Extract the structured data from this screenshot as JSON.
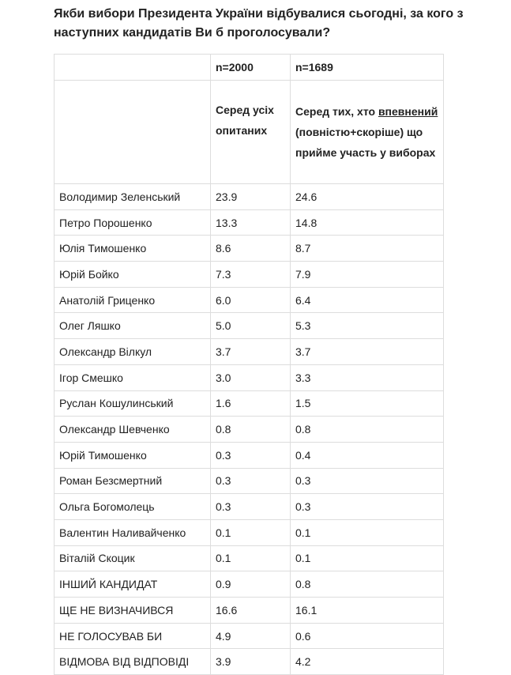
{
  "title": "Якби вибори Президента України відбувалися сьогодні, за кого з наступних кандидатів Ви б проголосували?",
  "table": {
    "header": {
      "n_all": "n=2000",
      "n_sure": "n=1689",
      "desc_all": "Серед усіх опитаних",
      "desc_sure": [
        "Серед тих, хто",
        "впевнений",
        "(повністю+скоріше) що прийме участь у виборах"
      ]
    },
    "rows": [
      [
        "Володимир Зеленський",
        "23.9",
        "24.6"
      ],
      [
        "Петро Порошенко",
        "13.3",
        "14.8"
      ],
      [
        "Юлія Тимошенко",
        "8.6",
        "8.7"
      ],
      [
        "Юрій Бойко",
        "7.3",
        "7.9"
      ],
      [
        "Анатолій Гриценко",
        "6.0",
        "6.4"
      ],
      [
        "Олег Ляшко",
        "5.0",
        "5.3"
      ],
      [
        "Олександр Вілкул",
        "3.7",
        "3.7"
      ],
      [
        "Ігор Смешко",
        "3.0",
        "3.3"
      ],
      [
        "Руслан Кошулинський",
        "1.6",
        "1.5"
      ],
      [
        "Олександр Шевченко",
        "0.8",
        "0.8"
      ],
      [
        "Юрій Тимошенко",
        "0.3",
        "0.4"
      ],
      [
        "Роман Безсмертний",
        "0.3",
        "0.3"
      ],
      [
        "Ольга Богомолець",
        "0.3",
        "0.3"
      ],
      [
        "Валентин Наливайченко",
        "0.1",
        "0.1"
      ],
      [
        "Віталій Скоцик",
        "0.1",
        "0.1"
      ],
      [
        "ІНШИЙ КАНДИДАТ",
        "0.9",
        "0.8"
      ],
      [
        "ЩЕ НЕ ВИЗНАЧИВСЯ",
        "16.6",
        "16.1"
      ],
      [
        "НЕ ГОЛОСУВАВ БИ",
        "4.9",
        "0.6"
      ],
      [
        "ВІДМОВА ВІД ВІДПОВІДІ",
        "3.9",
        "4.2"
      ]
    ]
  }
}
